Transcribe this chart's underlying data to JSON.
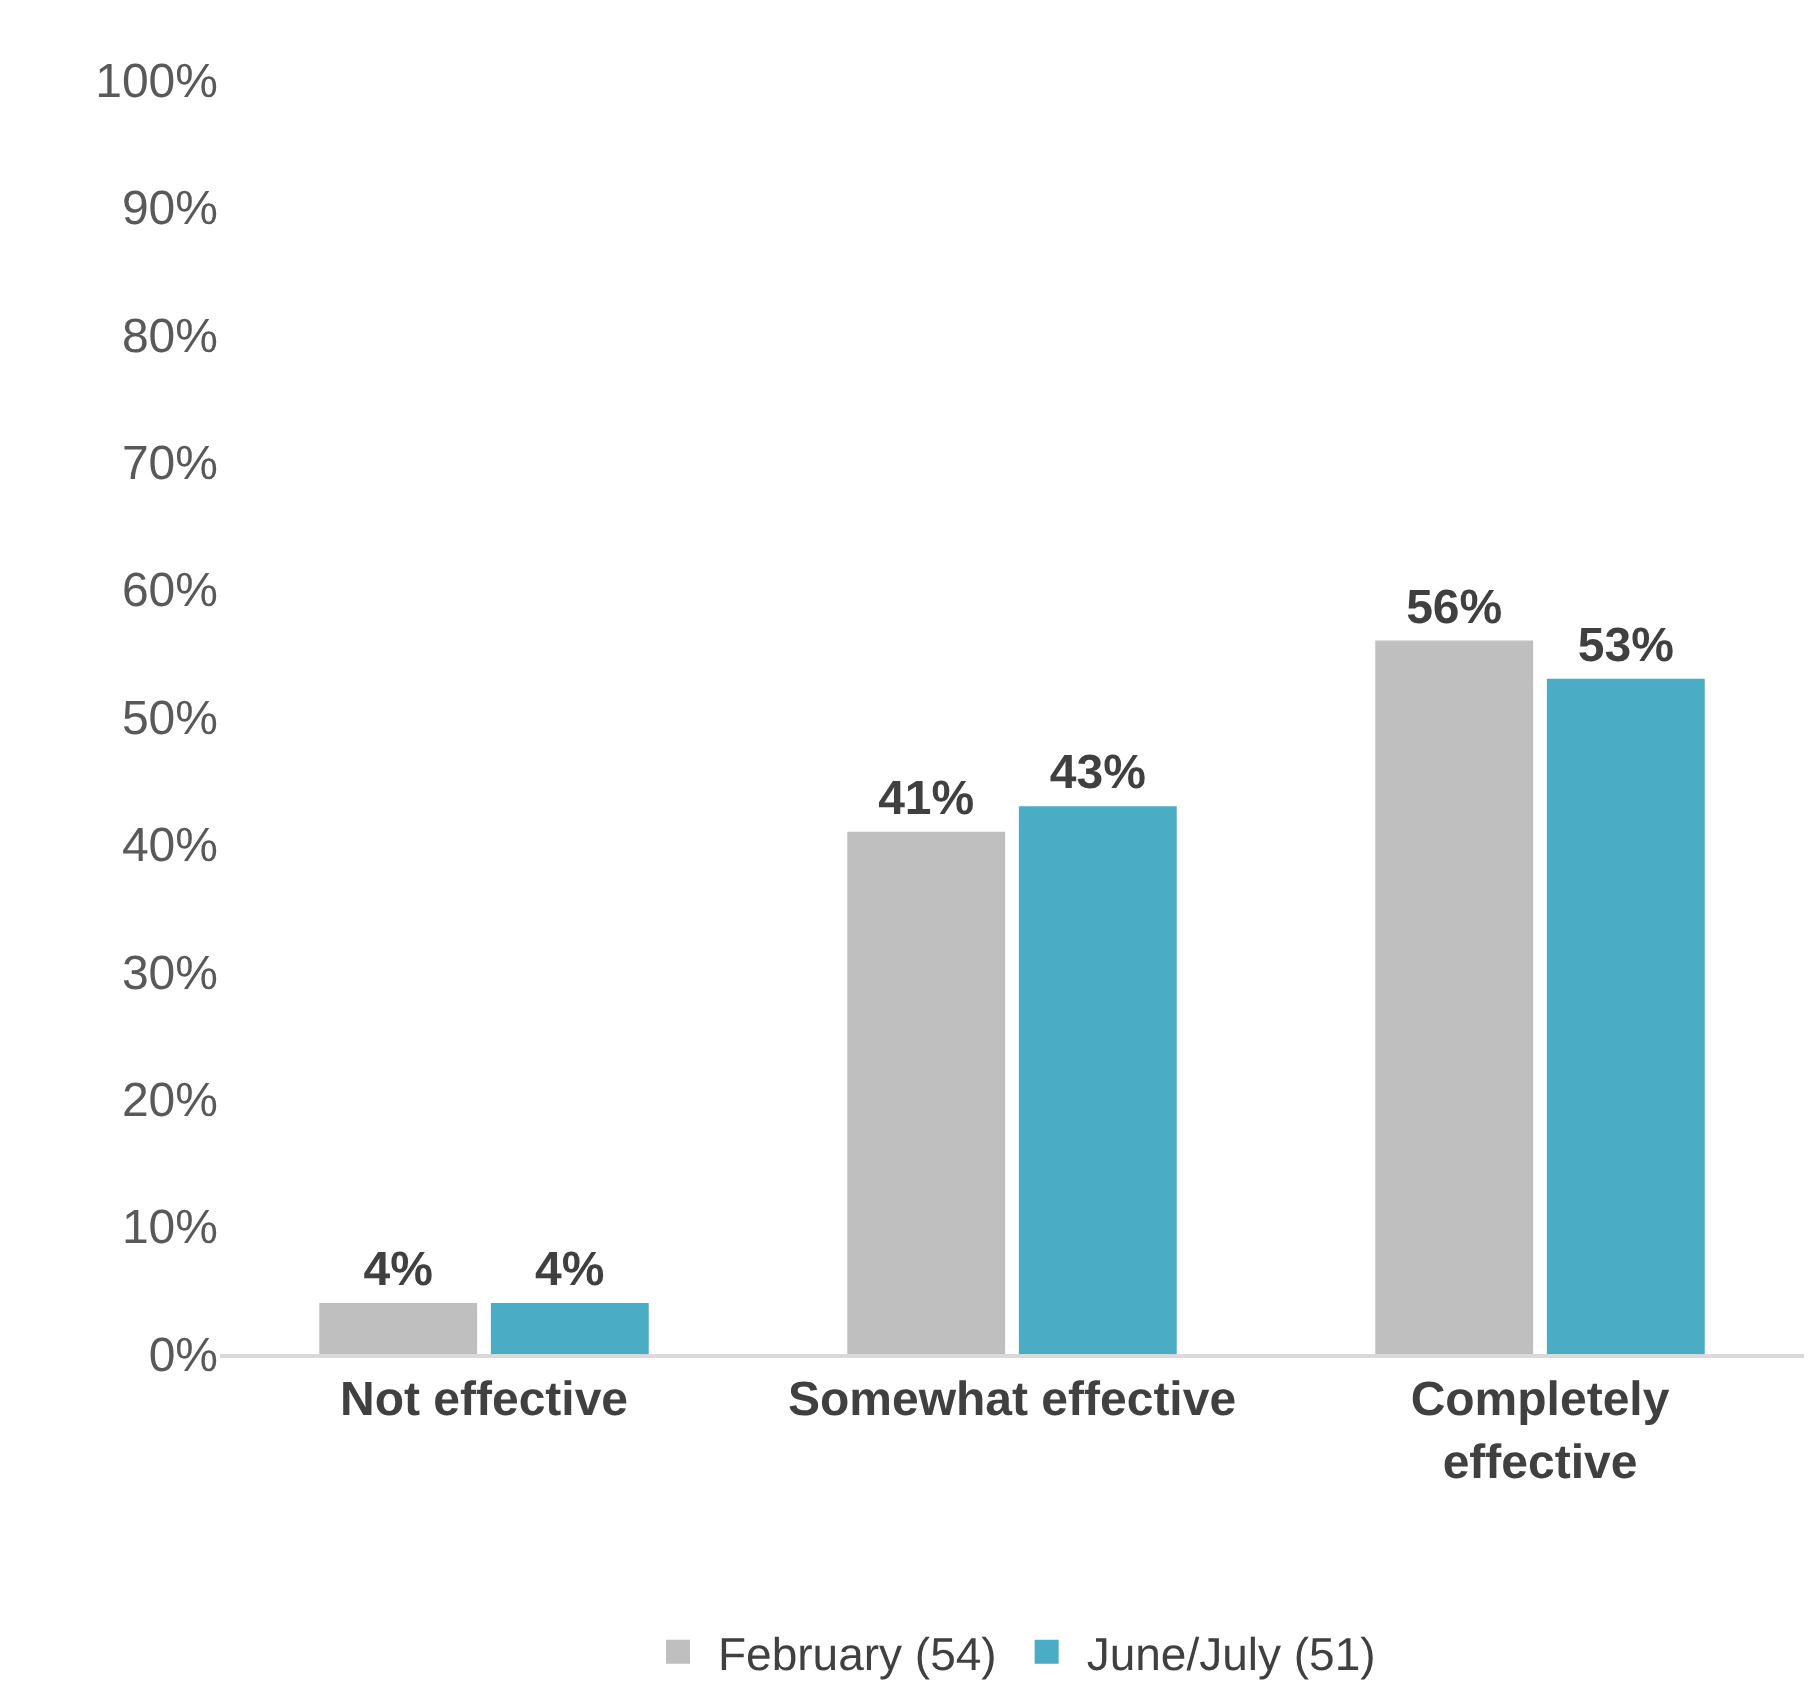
{
  "chart_data": {
    "type": "bar",
    "categories": [
      "Not effective",
      "Somewhat effective",
      "Completely effective"
    ],
    "series": [
      {
        "name": "February (54)",
        "color": "#bfbfbf",
        "values": [
          4,
          41,
          56
        ],
        "value_labels": [
          "4%",
          "41%",
          "56%"
        ]
      },
      {
        "name": "June/July (51)",
        "color": "#4bacc6",
        "values": [
          4,
          43,
          53
        ],
        "value_labels": [
          "4%",
          "43%",
          "53%"
        ]
      }
    ],
    "ylim": [
      0,
      100
    ],
    "yticks": [
      {
        "value": 0,
        "label": "0%"
      },
      {
        "value": 10,
        "label": "10%"
      },
      {
        "value": 20,
        "label": "20%"
      },
      {
        "value": 30,
        "label": "30%"
      },
      {
        "value": 40,
        "label": "40%"
      },
      {
        "value": 50,
        "label": "50%"
      },
      {
        "value": 60,
        "label": "60%"
      },
      {
        "value": 70,
        "label": "70%"
      },
      {
        "value": 80,
        "label": "80%"
      },
      {
        "value": 90,
        "label": "90%"
      },
      {
        "value": 100,
        "label": "100%"
      }
    ],
    "grid": false,
    "legend": "bottom"
  }
}
